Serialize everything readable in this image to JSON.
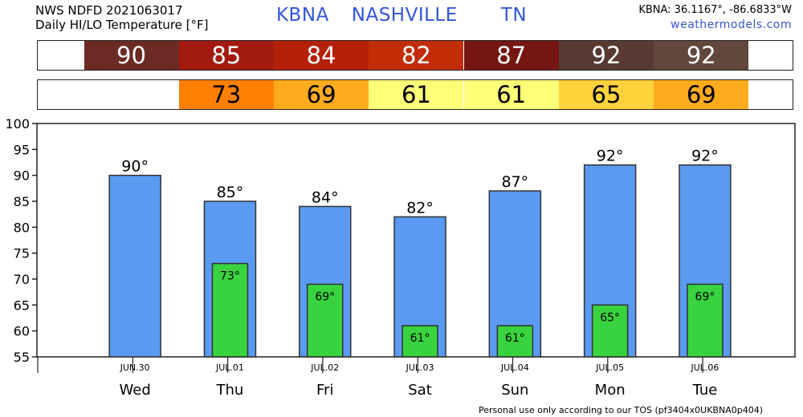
{
  "header": {
    "line1": "NWS NDFD 2021063017",
    "line2": "Daily HI/LO Temperature [°F]",
    "station": "KBNA",
    "city": "NASHVILLE",
    "state": "TN",
    "coords": "KBNA: 36.1167°, -86.6833°W",
    "site": "weathermodels.com"
  },
  "footer": "Personal use only according to our TOS (pf3404x0UKBNA0p404)",
  "strips": {
    "hi": [
      {
        "text": "90",
        "color": "#6b2a24",
        "fg": "#ffffff"
      },
      {
        "text": "85",
        "color": "#a31a10",
        "fg": "#ffffff"
      },
      {
        "text": "84",
        "color": "#b42108",
        "fg": "#ffffff"
      },
      {
        "text": "82",
        "color": "#c22c06",
        "fg": "#ffffff"
      },
      {
        "text": "87",
        "color": "#761612",
        "fg": "#ffffff"
      },
      {
        "text": "92",
        "color": "#583a33",
        "fg": "#ffffff"
      },
      {
        "text": "92",
        "color": "#61473c",
        "fg": "#ffffff"
      }
    ],
    "lo": [
      {
        "text": "",
        "color": "#ffffff",
        "fg": "#000000"
      },
      {
        "text": "73",
        "color": "#ff7f00",
        "fg": "#000000"
      },
      {
        "text": "69",
        "color": "#ffab1e",
        "fg": "#000000"
      },
      {
        "text": "61",
        "color": "#fdff78",
        "fg": "#000000"
      },
      {
        "text": "61",
        "color": "#fdff78",
        "fg": "#000000"
      },
      {
        "text": "65",
        "color": "#ffd23c",
        "fg": "#000000"
      },
      {
        "text": "69",
        "color": "#ffab1e",
        "fg": "#000000"
      }
    ]
  },
  "chart_data": {
    "type": "bar",
    "categories": [
      "Wed",
      "Thu",
      "Fri",
      "Sat",
      "Sun",
      "Mon",
      "Tue"
    ],
    "dates": [
      "JUN.30",
      "JUL.01",
      "JUL.02",
      "JUL.03",
      "JUL.04",
      "JUL.05",
      "JUL.06"
    ],
    "series": [
      {
        "values": [
          90,
          85,
          84,
          82,
          87,
          92,
          92
        ],
        "labels": [
          "90°",
          "85°",
          "84°",
          "82°",
          "87°",
          "92°",
          "92°"
        ],
        "color": "#5a9af0"
      },
      {
        "values": [
          null,
          73,
          69,
          61,
          61,
          65,
          69
        ],
        "labels": [
          "",
          "73°",
          "69°",
          "61°",
          "61°",
          "65°",
          "69°"
        ],
        "color": "#38d33e"
      }
    ],
    "yticks": [
      55,
      60,
      65,
      70,
      75,
      80,
      85,
      90,
      95,
      100
    ],
    "ylim": [
      55,
      100
    ],
    "grid": false,
    "legend": "none"
  }
}
